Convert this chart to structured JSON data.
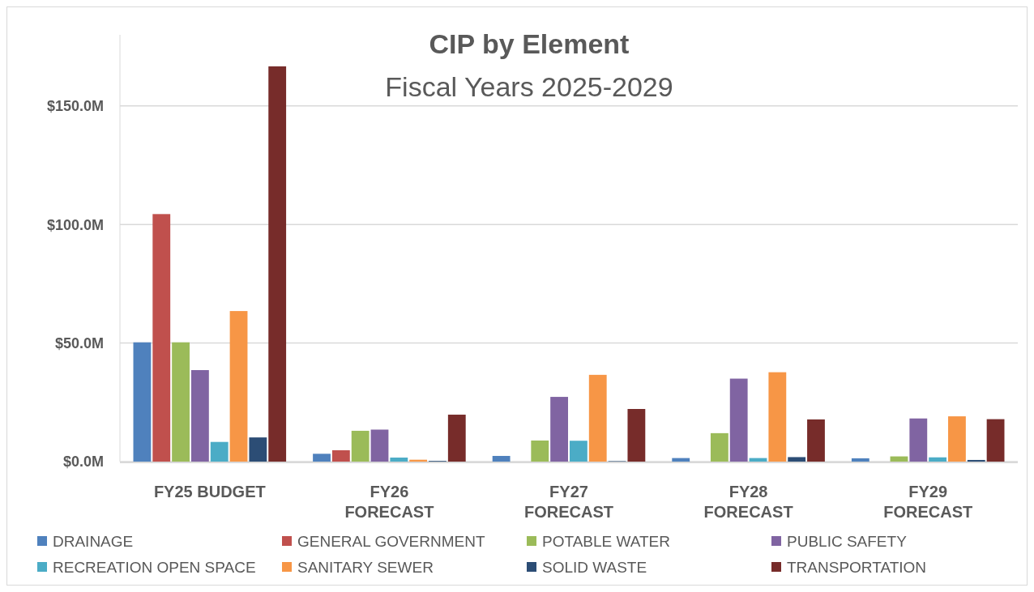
{
  "chart_data": {
    "type": "bar",
    "title": "CIP by Element",
    "subtitle": "Fiscal Years 2025-2029",
    "categories": [
      "FY25 BUDGET",
      "FY26 FORECAST",
      "FY27 FORECAST",
      "FY28 FORECAST",
      "FY29 FORECAST"
    ],
    "series": [
      {
        "name": "DRAINAGE",
        "color": "#4f81bd",
        "values": [
          50.3,
          3.3,
          2.4,
          1.5,
          1.4
        ]
      },
      {
        "name": "GENERAL GOVERNMENT",
        "color": "#c0504d",
        "values": [
          104.4,
          4.8,
          0,
          0,
          0
        ]
      },
      {
        "name": "POTABLE WATER",
        "color": "#9bbb59",
        "values": [
          50.3,
          13.0,
          8.9,
          12.0,
          2.2
        ]
      },
      {
        "name": "PUBLIC SAFETY",
        "color": "#8064a2",
        "values": [
          38.6,
          13.5,
          27.3,
          35.0,
          18.2
        ]
      },
      {
        "name": "RECREATION OPEN SPACE",
        "color": "#4bacc6",
        "values": [
          8.3,
          1.7,
          8.8,
          1.5,
          1.8
        ]
      },
      {
        "name": "SANITARY SEWER",
        "color": "#f79646",
        "values": [
          63.5,
          0.8,
          36.6,
          37.7,
          19.1
        ]
      },
      {
        "name": "SOLID WASTE",
        "color": "#2c4d75",
        "values": [
          10.2,
          0.3,
          0.2,
          1.9,
          0.7
        ]
      },
      {
        "name": "TRANSPORTATION",
        "color": "#772c2a",
        "values": [
          166.7,
          19.8,
          22.2,
          17.8,
          17.9
        ]
      }
    ],
    "ylim": [
      0,
      180
    ],
    "yticks": [
      {
        "value": 0,
        "label": "$0.0M"
      },
      {
        "value": 50,
        "label": "$50.0M"
      },
      {
        "value": 100,
        "label": "$100.0M"
      },
      {
        "value": 150,
        "label": "$150.0M"
      }
    ],
    "grid": "y",
    "legend": "bottom"
  }
}
